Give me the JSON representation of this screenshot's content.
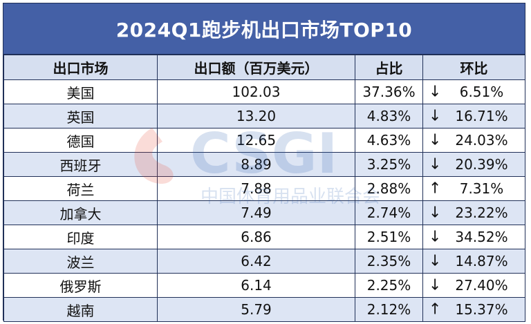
{
  "title": "2024Q1跑步机出口市场TOP10",
  "headers": {
    "market": "出口市场",
    "amount": "出口额（百万美元）",
    "share": "占比",
    "change": "环比"
  },
  "rows": [
    {
      "market": "美国",
      "amount": "102.03",
      "share": "37.36%",
      "arrow": "↓",
      "change": "6.51%"
    },
    {
      "market": "英国",
      "amount": "13.20",
      "share": "4.83%",
      "arrow": "↓",
      "change": "16.71%"
    },
    {
      "market": "德国",
      "amount": "12.65",
      "share": "4.63%",
      "arrow": "↓",
      "change": "24.03%"
    },
    {
      "market": "西班牙",
      "amount": "8.89",
      "share": "3.25%",
      "arrow": "↓",
      "change": "20.39%"
    },
    {
      "market": "荷兰",
      "amount": "7.88",
      "share": "2.88%",
      "arrow": "↑",
      "change": "7.31%"
    },
    {
      "market": "加拿大",
      "amount": "7.49",
      "share": "2.74%",
      "arrow": "↓",
      "change": "23.22%"
    },
    {
      "market": "印度",
      "amount": "6.86",
      "share": "2.51%",
      "arrow": "↓",
      "change": "34.52%"
    },
    {
      "market": "波兰",
      "amount": "6.42",
      "share": "2.35%",
      "arrow": "↓",
      "change": "14.87%"
    },
    {
      "market": "俄罗斯",
      "amount": "6.14",
      "share": "2.25%",
      "arrow": "↓",
      "change": "27.40%"
    },
    {
      "market": "越南",
      "amount": "5.79",
      "share": "2.12%",
      "arrow": "↑",
      "change": "15.37%"
    }
  ],
  "watermark": {
    "logo_text": "CSGI",
    "subtitle": "中国体育用品业联合会",
    "color_red": "#e8432f",
    "color_blue": "#2a5fb0"
  }
}
